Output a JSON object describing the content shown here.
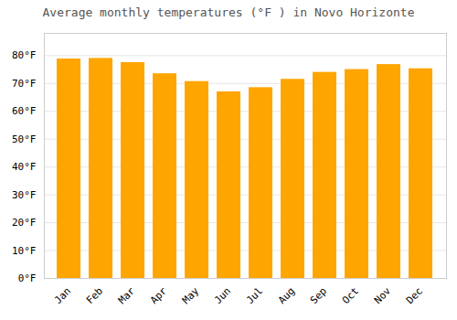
{
  "chart_data": {
    "type": "bar",
    "title": "Average monthly temperatures (°F ) in Novo Horizonte",
    "categories": [
      "Jan",
      "Feb",
      "Mar",
      "Apr",
      "May",
      "Jun",
      "Jul",
      "Aug",
      "Sep",
      "Oct",
      "Nov",
      "Dec"
    ],
    "values": [
      78.8,
      79.0,
      77.5,
      73.5,
      70.7,
      67.0,
      68.5,
      71.5,
      74.0,
      75.0,
      76.8,
      75.3
    ],
    "color": "#FFA500",
    "ylim": [
      0,
      88
    ],
    "yticks": [
      {
        "value": 0,
        "label": "0°F"
      },
      {
        "value": 10,
        "label": "10°F"
      },
      {
        "value": 20,
        "label": "20°F"
      },
      {
        "value": 30,
        "label": "30°F"
      },
      {
        "value": 40,
        "label": "40°F"
      },
      {
        "value": 50,
        "label": "50°F"
      },
      {
        "value": 60,
        "label": "60°F"
      },
      {
        "value": 70,
        "label": "70°F"
      },
      {
        "value": 80,
        "label": "80°F"
      }
    ],
    "grid": true
  }
}
